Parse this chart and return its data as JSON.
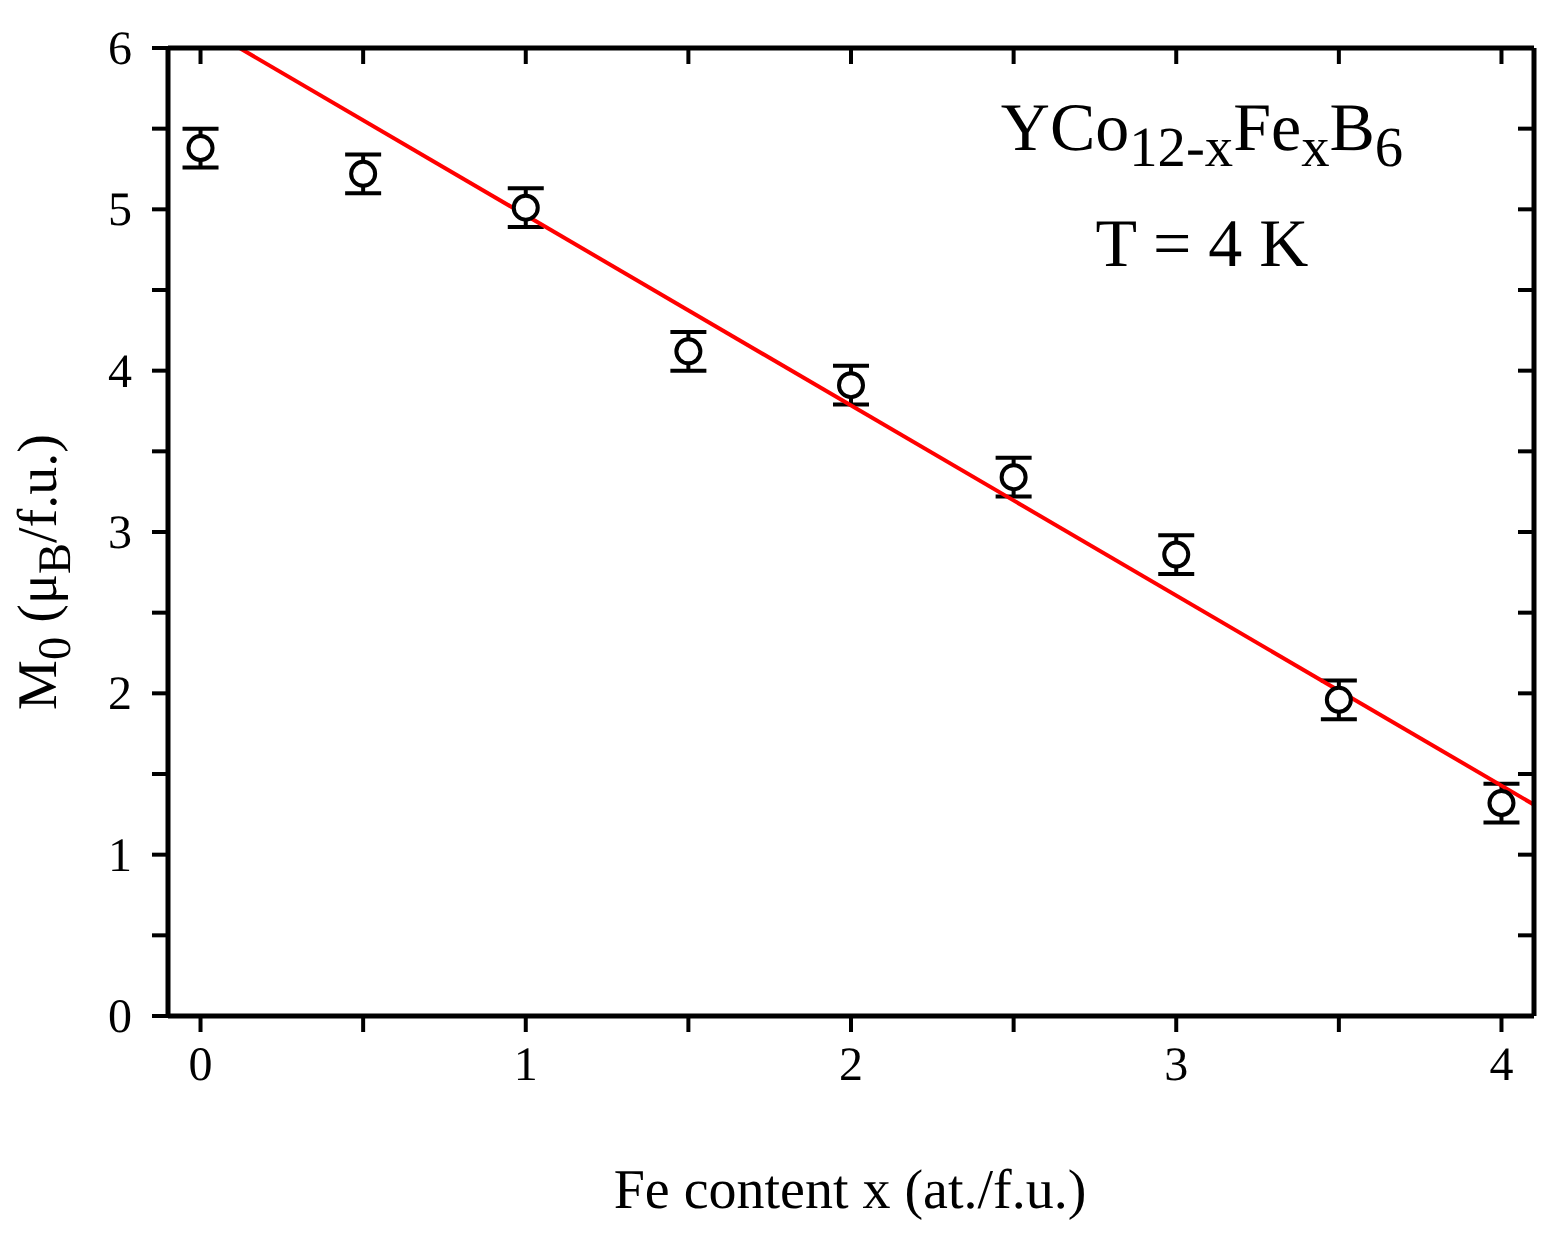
{
  "chart_data": {
    "type": "scatter",
    "xlabel": "Fe content x (at./f.u.)",
    "ylabel": "M$_{0}$ (μ$_{B}$/f.u.)",
    "annotations": [
      "YCo$_{12-x}$Fe$_{x}$B$_{6}$",
      "T = 4 K"
    ],
    "series": [
      {
        "color": "#000000",
        "x": [
          0,
          0.5,
          1,
          1.5,
          2,
          2.5,
          3,
          3.5,
          4
        ],
        "values": [
          5.38,
          5.22,
          5.01,
          4.12,
          3.91,
          3.34,
          2.86,
          1.96,
          1.32
        ],
        "errors": [
          0.12,
          0.12,
          0.12,
          0.12,
          0.12,
          0.12,
          0.12,
          0.12,
          0.12
        ]
      },
      {
        "type": "line",
        "color": "#ff0000",
        "marker": "none",
        "x": [
          0.12,
          4.1
        ],
        "values": [
          6.0,
          1.31
        ]
      }
    ],
    "xlim": [
      -0.1,
      4.1
    ],
    "xticks": [
      0,
      {
        "value": 0.5,
        "label": null
      },
      1,
      {
        "value": 1.5,
        "label": null
      },
      2,
      {
        "value": 2.5,
        "label": null
      },
      3,
      {
        "value": 3.5,
        "label": null
      },
      4
    ],
    "ylim": [
      0,
      6
    ],
    "yticks": [
      0,
      {
        "value": 0.5,
        "label": null
      },
      1,
      {
        "value": 1.5,
        "label": null
      },
      2,
      {
        "value": 2.5,
        "label": null
      },
      3,
      {
        "value": 3.5,
        "label": null
      },
      4,
      {
        "value": 4.5,
        "label": null
      },
      5,
      {
        "value": 5.5,
        "label": null
      },
      6
    ],
    "marker": "circle"
  }
}
